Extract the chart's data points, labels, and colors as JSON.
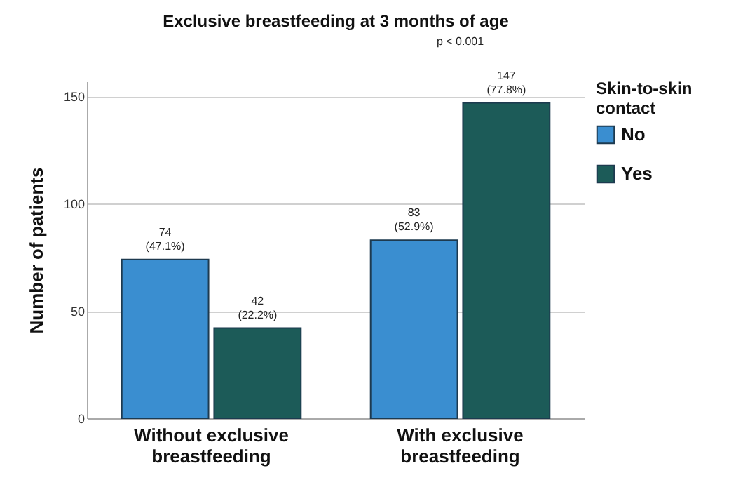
{
  "chart_data": {
    "type": "bar",
    "title": "Exclusive breastfeeding at 3 months of age",
    "ylabel": "Number of patients",
    "legend_title": "Skin-to-skin contact",
    "categories": [
      "Without exclusive breastfeeding",
      "With exclusive breastfeeding"
    ],
    "series": [
      {
        "name": "No",
        "color": "#3a8ed0",
        "values": [
          74,
          83
        ],
        "value_labels": [
          "74 (47.1%)",
          "83 (52.9%)"
        ]
      },
      {
        "name": "Yes",
        "color": "#1c5b58",
        "values": [
          42,
          147
        ],
        "value_labels": [
          "42 (22.2%)",
          "147 (77.8%)"
        ]
      }
    ],
    "ylim": [
      0,
      157
    ],
    "yticks": [
      0,
      50,
      100,
      150
    ],
    "grid": "y",
    "legend": "top right",
    "annotations": [
      "p < 0.001"
    ]
  }
}
